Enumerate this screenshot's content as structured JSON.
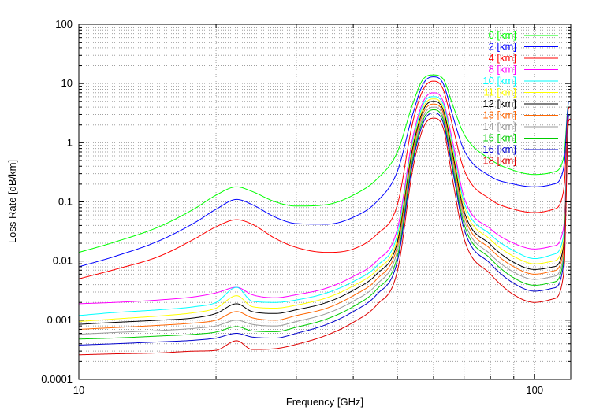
{
  "chart_data": {
    "type": "line",
    "title": "",
    "xlabel": "Frequency [GHz]",
    "ylabel": "Loss Rate [dB/km]",
    "xscale": "log",
    "yscale": "log",
    "xlim": [
      10,
      120
    ],
    "ylim": [
      0.0001,
      100
    ],
    "grid": true,
    "legend_position": "top-right",
    "x_ticks": [
      {
        "value": 10,
        "label": "10"
      },
      {
        "value": 100,
        "label": "100"
      }
    ],
    "y_ticks": [
      {
        "value": 0.0001,
        "label": "0.0001"
      },
      {
        "value": 0.001,
        "label": "0.001"
      },
      {
        "value": 0.01,
        "label": "0.01"
      },
      {
        "value": 0.1,
        "label": "0.1"
      },
      {
        "value": 1,
        "label": "1"
      },
      {
        "value": 10,
        "label": "10"
      },
      {
        "value": 100,
        "label": "100"
      }
    ],
    "x": [
      10,
      12,
      15,
      18,
      20,
      22.2,
      24,
      27,
      30,
      35,
      40,
      45,
      50,
      54,
      57,
      60,
      63,
      66,
      70,
      80,
      90,
      100,
      110,
      116,
      118.75,
      120
    ],
    "series": [
      {
        "label": "0 [km]",
        "color": "#00ff00",
        "values": [
          0.014,
          0.021,
          0.038,
          0.078,
          0.13,
          0.18,
          0.15,
          0.1,
          0.085,
          0.09,
          0.13,
          0.24,
          0.7,
          4.5,
          12,
          14,
          12,
          4.5,
          1.4,
          0.52,
          0.34,
          0.29,
          0.32,
          0.6,
          5,
          5
        ]
      },
      {
        "label": "2 [km]",
        "color": "#0000ff",
        "values": [
          0.008,
          0.012,
          0.022,
          0.045,
          0.075,
          0.11,
          0.09,
          0.055,
          0.043,
          0.042,
          0.055,
          0.1,
          0.33,
          3,
          10,
          13,
          10,
          3,
          0.75,
          0.27,
          0.2,
          0.18,
          0.2,
          0.4,
          5,
          5
        ]
      },
      {
        "label": "4 [km]",
        "color": "#ff0000",
        "values": [
          0.005,
          0.0072,
          0.012,
          0.024,
          0.038,
          0.05,
          0.042,
          0.024,
          0.017,
          0.014,
          0.016,
          0.028,
          0.09,
          2.2,
          8,
          11,
          8,
          2,
          0.35,
          0.11,
          0.075,
          0.066,
          0.075,
          0.17,
          4,
          4
        ]
      },
      {
        "label": "8 [km]",
        "color": "#ff00ff",
        "values": [
          0.0019,
          0.002,
          0.0022,
          0.0025,
          0.0029,
          0.0036,
          0.0027,
          0.0024,
          0.0027,
          0.0035,
          0.0055,
          0.01,
          0.035,
          1.2,
          5,
          7,
          5,
          1.1,
          0.12,
          0.035,
          0.02,
          0.016,
          0.018,
          0.04,
          3,
          3
        ]
      },
      {
        "label": "10 [km]",
        "color": "#00ffff",
        "values": [
          0.0012,
          0.00135,
          0.0015,
          0.0017,
          0.002,
          0.0036,
          0.0021,
          0.002,
          0.0022,
          0.0029,
          0.0045,
          0.0082,
          0.028,
          1,
          4.5,
          6,
          4.5,
          0.9,
          0.1,
          0.028,
          0.015,
          0.011,
          0.013,
          0.03,
          3,
          3
        ]
      },
      {
        "label": "11 [km]",
        "color": "#ffff00",
        "values": [
          0.00095,
          0.00105,
          0.00118,
          0.00135,
          0.0016,
          0.0026,
          0.0017,
          0.0016,
          0.0018,
          0.0024,
          0.0038,
          0.007,
          0.024,
          0.9,
          4,
          5.5,
          4,
          0.8,
          0.085,
          0.023,
          0.012,
          0.009,
          0.01,
          0.025,
          3,
          3
        ]
      },
      {
        "label": "12 [km]",
        "color": "#000000",
        "values": [
          0.00085,
          0.00092,
          0.001,
          0.0011,
          0.0013,
          0.0019,
          0.0014,
          0.0013,
          0.0015,
          0.002,
          0.0032,
          0.006,
          0.021,
          0.8,
          3.6,
          5,
          3.6,
          0.7,
          0.07,
          0.019,
          0.0095,
          0.0072,
          0.008,
          0.02,
          3,
          3
        ]
      },
      {
        "label": "13 [km]",
        "color": "#ff6600",
        "values": [
          0.0007,
          0.00075,
          0.00082,
          0.0009,
          0.001,
          0.0014,
          0.0011,
          0.001,
          0.0012,
          0.0016,
          0.0026,
          0.0049,
          0.018,
          0.7,
          3.2,
          4.5,
          3.2,
          0.6,
          0.06,
          0.016,
          0.008,
          0.006,
          0.0068,
          0.017,
          3,
          3
        ]
      },
      {
        "label": "14 [km]",
        "color": "#999999",
        "values": [
          0.00058,
          0.00062,
          0.00067,
          0.00073,
          0.0008,
          0.001,
          0.00085,
          0.0008,
          0.00095,
          0.0013,
          0.0021,
          0.004,
          0.015,
          0.6,
          2.8,
          4,
          2.8,
          0.5,
          0.05,
          0.013,
          0.0065,
          0.0049,
          0.0055,
          0.014,
          3,
          3
        ]
      },
      {
        "label": "15 [km]",
        "color": "#00cc00",
        "values": [
          0.00048,
          0.0005,
          0.00054,
          0.00058,
          0.00063,
          0.00078,
          0.00066,
          0.00064,
          0.00076,
          0.00105,
          0.0017,
          0.0033,
          0.012,
          0.52,
          2.5,
          3.6,
          2.5,
          0.42,
          0.042,
          0.011,
          0.0052,
          0.0039,
          0.0044,
          0.012,
          3,
          3
        ]
      },
      {
        "label": "16 [km]",
        "color": "#0000cc",
        "values": [
          0.00038,
          0.0004,
          0.00043,
          0.00046,
          0.0005,
          0.0006,
          0.00052,
          0.0005,
          0.0006,
          0.00085,
          0.0014,
          0.0027,
          0.01,
          0.45,
          2.2,
          3.2,
          2.2,
          0.36,
          0.035,
          0.009,
          0.0042,
          0.0031,
          0.0035,
          0.01,
          3,
          3
        ]
      },
      {
        "label": "18 [km]",
        "color": "#dd0000",
        "values": [
          0.00026,
          0.00027,
          0.00028,
          0.0003,
          0.00031,
          0.00045,
          0.00032,
          0.00033,
          0.00039,
          0.00056,
          0.00092,
          0.0018,
          0.0068,
          0.35,
          1.8,
          2.6,
          1.8,
          0.25,
          0.024,
          0.006,
          0.0027,
          0.002,
          0.0023,
          0.0068,
          2.5,
          2.5
        ]
      }
    ]
  }
}
